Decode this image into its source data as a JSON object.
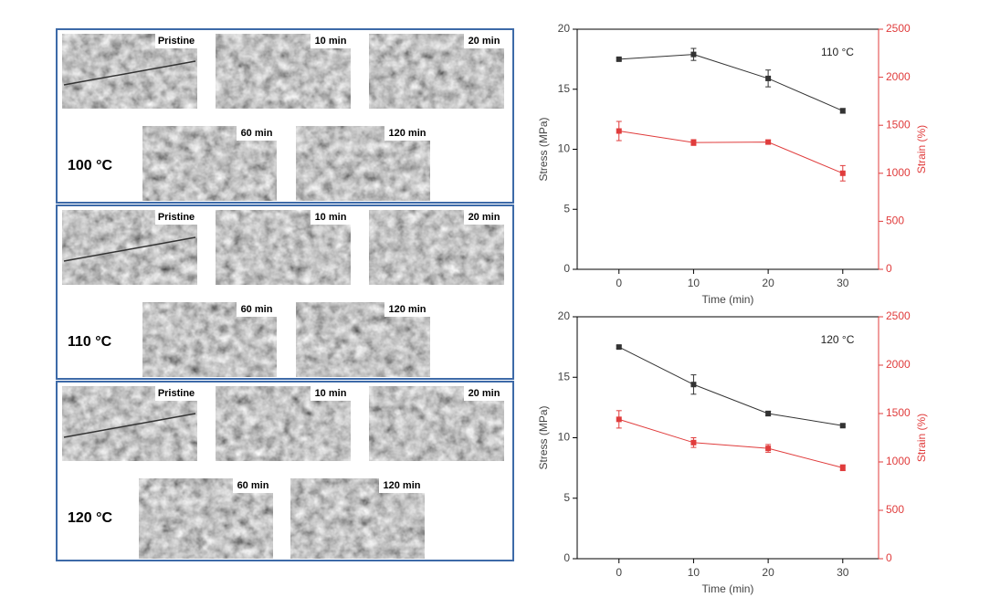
{
  "panels": [
    {
      "temperature": "100 °C",
      "images": [
        {
          "label": "Pristine"
        },
        {
          "label": "10 min"
        },
        {
          "label": "20 min"
        },
        {
          "label": "60 min"
        },
        {
          "label": "120 min"
        }
      ]
    },
    {
      "temperature": "110 °C",
      "images": [
        {
          "label": "Pristine"
        },
        {
          "label": "10 min"
        },
        {
          "label": "20 min"
        },
        {
          "label": "60 min"
        },
        {
          "label": "120 min"
        }
      ]
    },
    {
      "temperature": "120 °C",
      "images": [
        {
          "label": "Pristine"
        },
        {
          "label": "10 min"
        },
        {
          "label": "20 min"
        },
        {
          "label": "60 min"
        },
        {
          "label": "120 min"
        }
      ]
    }
  ],
  "chart_data": [
    {
      "type": "line",
      "annotation": "110 °C",
      "x_label": "Time (min)",
      "y_label": "Stress (MPa)",
      "y2_label": "Strain (%)",
      "x": [
        0,
        10,
        20,
        30
      ],
      "xlim": [
        -5.6,
        34.8
      ],
      "xticks": [
        0,
        10,
        20,
        30
      ],
      "ylim": [
        0,
        20
      ],
      "yticks": [
        0,
        5,
        10,
        15,
        20
      ],
      "y2lim": [
        0,
        2500
      ],
      "y2ticks": [
        0,
        500,
        1000,
        1500,
        2000,
        2500
      ],
      "series": [
        {
          "color": "#333333",
          "values": [
            17.5,
            17.9,
            15.9,
            13.2
          ],
          "errors": [
            0.1,
            0.5,
            0.7,
            0.2
          ]
        },
        {
          "color": "#e03c3c",
          "axis": "y2",
          "values": [
            1440,
            1320,
            1325,
            1000
          ],
          "errors": [
            100,
            30,
            20,
            80
          ]
        }
      ]
    },
    {
      "type": "line",
      "annotation": "120 °C",
      "x_label": "Time (min)",
      "y_label": "Stress (MPa)",
      "y2_label": "Strain (%)",
      "x": [
        0,
        10,
        20,
        30
      ],
      "xlim": [
        -5.6,
        34.8
      ],
      "xticks": [
        0,
        10,
        20,
        30
      ],
      "ylim": [
        0,
        20
      ],
      "yticks": [
        0,
        5,
        10,
        15,
        20
      ],
      "y2lim": [
        0,
        2500
      ],
      "y2ticks": [
        0,
        500,
        1000,
        1500,
        2000,
        2500
      ],
      "series": [
        {
          "color": "#333333",
          "values": [
            17.5,
            14.4,
            12.0,
            11.0
          ],
          "errors": [
            0.1,
            0.8,
            0.2,
            0.1
          ]
        },
        {
          "color": "#e03c3c",
          "axis": "y2",
          "values": [
            1440,
            1200,
            1140,
            940
          ],
          "errors": [
            90,
            50,
            40,
            30
          ]
        }
      ]
    }
  ]
}
